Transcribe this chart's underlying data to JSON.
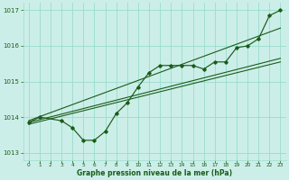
{
  "bg_color": "#cceee8",
  "grid_color": "#99ddcc",
  "line_color": "#1a5c1a",
  "xlabel": "Graphe pression niveau de la mer (hPa)",
  "xlim": [
    -0.5,
    23.5
  ],
  "ylim": [
    1012.8,
    1017.2
  ],
  "yticks": [
    1013,
    1014,
    1015,
    1016,
    1017
  ],
  "xticks": [
    0,
    1,
    2,
    3,
    4,
    5,
    6,
    7,
    8,
    9,
    10,
    11,
    12,
    13,
    14,
    15,
    16,
    17,
    18,
    19,
    20,
    21,
    22,
    23
  ],
  "marker_x": [
    0,
    1,
    3,
    4,
    5,
    6,
    7,
    8,
    9,
    10,
    11,
    12,
    13,
    14,
    15,
    16,
    17,
    18,
    19,
    20,
    21,
    22,
    23
  ],
  "marker_y": [
    1013.85,
    1014.0,
    1013.9,
    1013.7,
    1013.35,
    1013.35,
    1013.6,
    1014.1,
    1014.4,
    1014.85,
    1015.25,
    1015.45,
    1015.45,
    1015.45,
    1015.45,
    1015.35,
    1015.55,
    1015.55,
    1015.95,
    1016.0,
    1016.2,
    1016.85,
    1017.0
  ],
  "line1_x": [
    0,
    23
  ],
  "line1_y": [
    1013.8,
    1015.55
  ],
  "line2_x": [
    0,
    23
  ],
  "line2_y": [
    1013.85,
    1015.65
  ],
  "line3_x": [
    0,
    23
  ],
  "line3_y": [
    1013.9,
    1016.5
  ]
}
